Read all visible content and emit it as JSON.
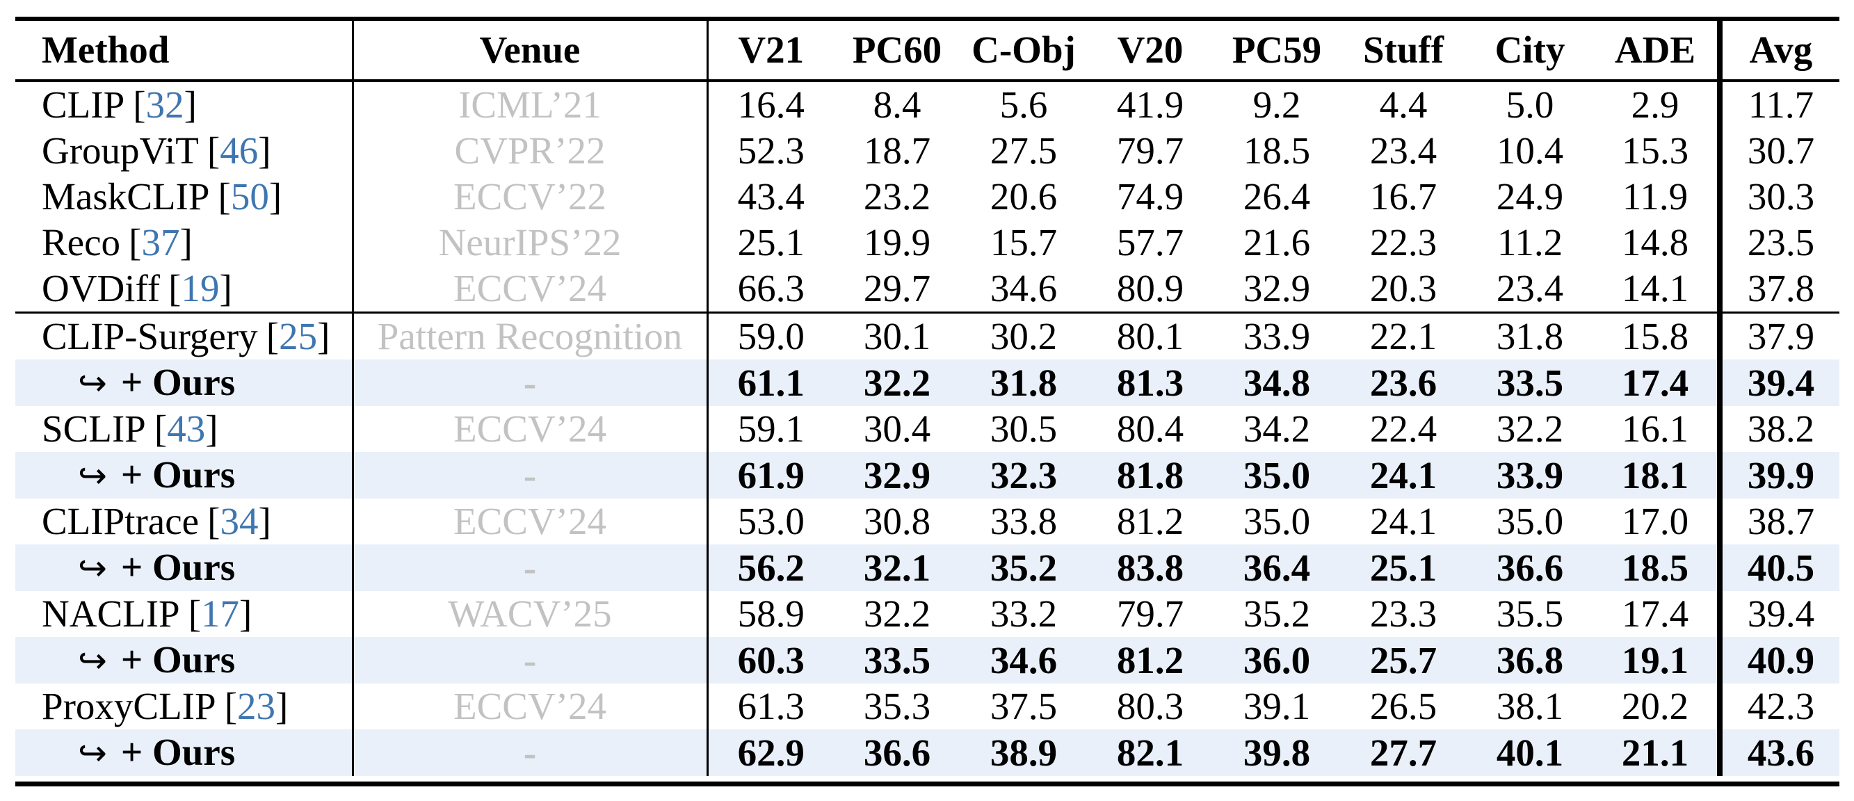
{
  "colors": {
    "citation_blue": "#3f76b0",
    "venue_gray": "#c2c2c2",
    "ours_row_background": "#e9f0fa",
    "rule_black": "#000000",
    "page_background": "#ffffff"
  },
  "table": {
    "columns": [
      "Method",
      "Venue",
      "V21",
      "PC60",
      "C-Obj",
      "V20",
      "PC59",
      "Stuff",
      "City",
      "ADE",
      "Avg"
    ],
    "bracket_open": "[",
    "bracket_close": "]",
    "ours_label": "+ Ours",
    "arrow": "↪",
    "dash": "-",
    "rows": [
      {
        "method": "CLIP",
        "cite": "32",
        "venue": "ICML’21",
        "scores": [
          "16.4",
          "8.4",
          "5.6",
          "41.9",
          "9.2",
          "4.4",
          "5.0",
          "2.9"
        ],
        "avg": "11.7"
      },
      {
        "method": "GroupViT",
        "cite": "46",
        "venue": "CVPR’22",
        "scores": [
          "52.3",
          "18.7",
          "27.5",
          "79.7",
          "18.5",
          "23.4",
          "10.4",
          "15.3"
        ],
        "avg": "30.7"
      },
      {
        "method": "MaskCLIP",
        "cite": "50",
        "venue": "ECCV’22",
        "scores": [
          "43.4",
          "23.2",
          "20.6",
          "74.9",
          "26.4",
          "16.7",
          "24.9",
          "11.9"
        ],
        "avg": "30.3"
      },
      {
        "method": "Reco",
        "cite": "37",
        "venue": "NeurIPS’22",
        "scores": [
          "25.1",
          "19.9",
          "15.7",
          "57.7",
          "21.6",
          "22.3",
          "11.2",
          "14.8"
        ],
        "avg": "23.5"
      },
      {
        "method": "OVDiff",
        "cite": "19",
        "venue": "ECCV’24",
        "scores": [
          "66.3",
          "29.7",
          "34.6",
          "80.9",
          "32.9",
          "20.3",
          "23.4",
          "14.1"
        ],
        "avg": "37.8"
      },
      {
        "method": "CLIP-Surgery",
        "cite": "25",
        "venue": "Pattern Recognition",
        "scores": [
          "59.0",
          "30.1",
          "30.2",
          "80.1",
          "33.9",
          "22.1",
          "31.8",
          "15.8"
        ],
        "avg": "37.9"
      },
      {
        "method": "+ Ours",
        "cite": "",
        "venue": "-",
        "scores": [
          "61.1",
          "32.2",
          "31.8",
          "81.3",
          "34.8",
          "23.6",
          "33.5",
          "17.4"
        ],
        "avg": "39.4"
      },
      {
        "method": "SCLIP",
        "cite": "43",
        "venue": "ECCV’24",
        "scores": [
          "59.1",
          "30.4",
          "30.5",
          "80.4",
          "34.2",
          "22.4",
          "32.2",
          "16.1"
        ],
        "avg": "38.2"
      },
      {
        "method": "+ Ours",
        "cite": "",
        "venue": "-",
        "scores": [
          "61.9",
          "32.9",
          "32.3",
          "81.8",
          "35.0",
          "24.1",
          "33.9",
          "18.1"
        ],
        "avg": "39.9"
      },
      {
        "method": "CLIPtrace",
        "cite": "34",
        "venue": "ECCV’24",
        "scores": [
          "53.0",
          "30.8",
          "33.8",
          "81.2",
          "35.0",
          "24.1",
          "35.0",
          "17.0"
        ],
        "avg": "38.7"
      },
      {
        "method": "+ Ours",
        "cite": "",
        "venue": "-",
        "scores": [
          "56.2",
          "32.1",
          "35.2",
          "83.8",
          "36.4",
          "25.1",
          "36.6",
          "18.5"
        ],
        "avg": "40.5"
      },
      {
        "method": "NACLIP",
        "cite": "17",
        "venue": "WACV’25",
        "scores": [
          "58.9",
          "32.2",
          "33.2",
          "79.7",
          "35.2",
          "23.3",
          "35.5",
          "17.4"
        ],
        "avg": "39.4"
      },
      {
        "method": "+ Ours",
        "cite": "",
        "venue": "-",
        "scores": [
          "60.3",
          "33.5",
          "34.6",
          "81.2",
          "36.0",
          "25.7",
          "36.8",
          "19.1"
        ],
        "avg": "40.9"
      },
      {
        "method": "ProxyCLIP",
        "cite": "23",
        "venue": "ECCV’24",
        "scores": [
          "61.3",
          "35.3",
          "37.5",
          "80.3",
          "39.1",
          "26.5",
          "38.1",
          "20.2"
        ],
        "avg": "42.3"
      },
      {
        "method": "+ Ours",
        "cite": "",
        "venue": "-",
        "scores": [
          "62.9",
          "36.6",
          "38.9",
          "82.1",
          "39.8",
          "27.7",
          "40.1",
          "21.1"
        ],
        "avg": "43.6"
      }
    ]
  }
}
